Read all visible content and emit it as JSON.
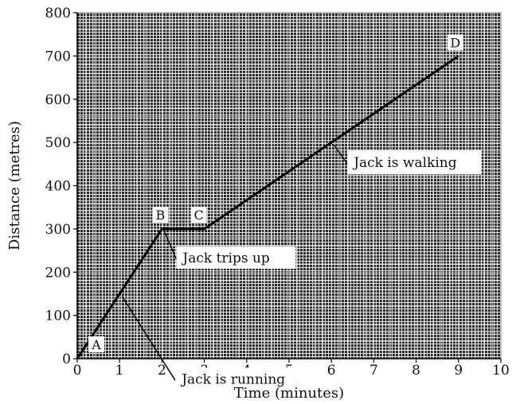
{
  "chart_data": {
    "type": "line",
    "title": "",
    "xlabel": "Time (minutes)",
    "ylabel": "Distance (metres)",
    "xlim": [
      0,
      10
    ],
    "ylim": [
      0,
      800
    ],
    "x_ticks": [
      0,
      1,
      2,
      3,
      4,
      5,
      6,
      7,
      8,
      9,
      10
    ],
    "y_ticks": [
      0,
      100,
      200,
      300,
      400,
      500,
      600,
      700,
      800
    ],
    "grid": true,
    "colors": {
      "plot_background": "#2b2b2b",
      "grid_line": "#ffffff",
      "line": "#000000"
    },
    "series": [
      {
        "x": [
          0,
          2,
          3,
          9
        ],
        "y": [
          0,
          300,
          300,
          700
        ]
      }
    ],
    "points": [
      {
        "label": "A",
        "x": 0,
        "y": 0
      },
      {
        "label": "B",
        "x": 2,
        "y": 300
      },
      {
        "label": "C",
        "x": 3,
        "y": 300
      },
      {
        "label": "D",
        "x": 9,
        "y": 700
      }
    ],
    "annotations": [
      {
        "text": "Jack is running",
        "x": 1,
        "y": 150
      },
      {
        "text": "Jack trips up",
        "x": 2,
        "y": 300
      },
      {
        "text": "Jack is walking",
        "x": 6,
        "y": 500
      }
    ]
  }
}
